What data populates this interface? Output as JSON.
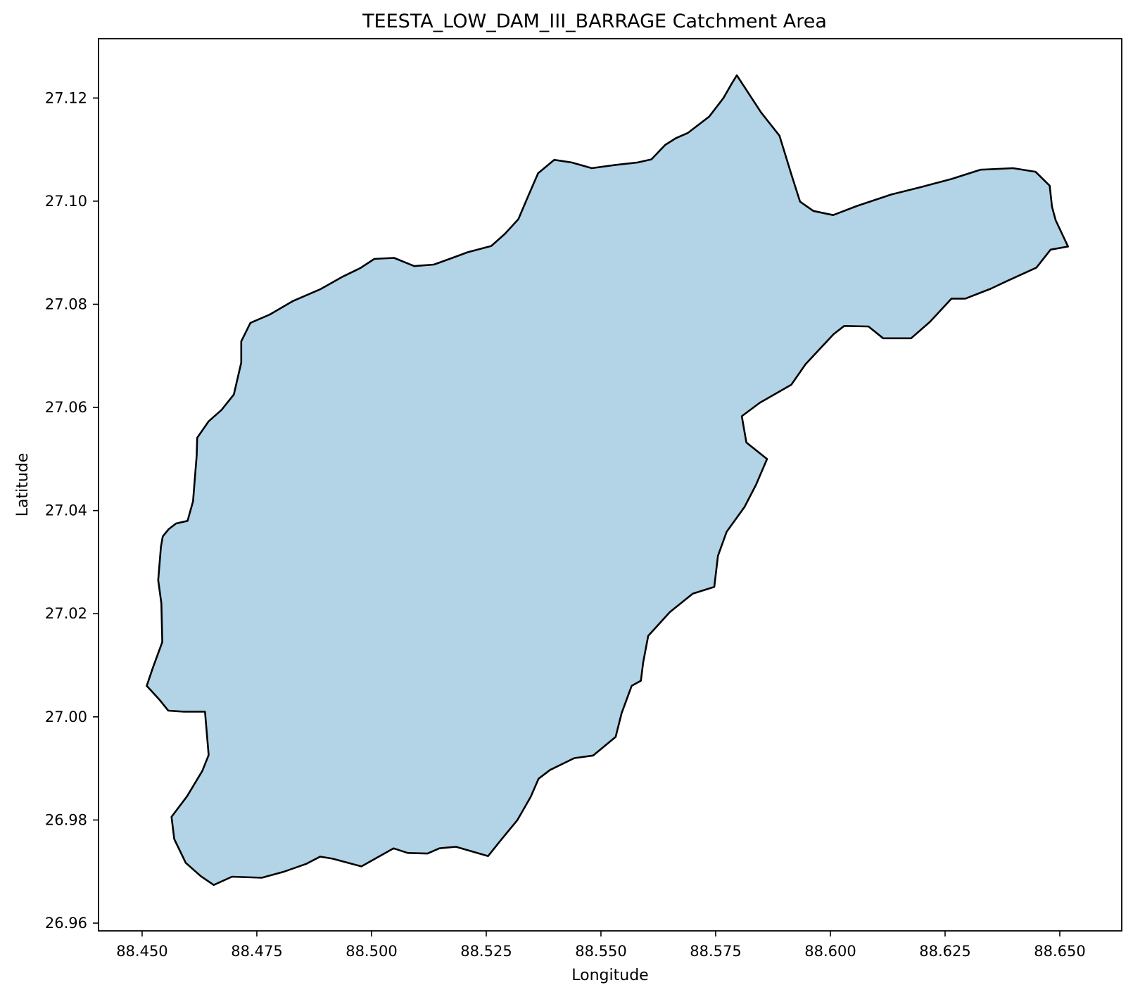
{
  "chart_data": {
    "type": "map",
    "title": "TEESTA_LOW_DAM_III_BARRAGE Catchment Area",
    "xlabel": "Longitude",
    "ylabel": "Latitude",
    "xlim": [
      88.4405,
      88.6635
    ],
    "ylim": [
      26.9585,
      27.1315
    ],
    "xticks": [
      88.45,
      88.475,
      88.5,
      88.525,
      88.55,
      88.575,
      88.6,
      88.625,
      88.65
    ],
    "xtick_labels": [
      "88.450",
      "88.475",
      "88.500",
      "88.525",
      "88.550",
      "88.575",
      "88.600",
      "88.625",
      "88.650"
    ],
    "yticks": [
      26.96,
      26.98,
      27.0,
      27.02,
      27.04,
      27.06,
      27.08,
      27.1,
      27.12
    ],
    "ytick_labels": [
      "26.96",
      "26.98",
      "27.00",
      "27.02",
      "27.04",
      "27.06",
      "27.08",
      "27.10",
      "27.12"
    ],
    "grid": false,
    "legend": false,
    "fill_color": "#b3d4e6",
    "edge_color": "#000000",
    "polygon": [
      [
        88.5796,
        27.1244
      ],
      [
        88.5849,
        27.1172
      ],
      [
        88.5889,
        27.1127
      ],
      [
        88.5915,
        27.1052
      ],
      [
        88.5934,
        27.0999
      ],
      [
        88.5963,
        27.0981
      ],
      [
        88.6006,
        27.0973
      ],
      [
        88.6059,
        27.0991
      ],
      [
        88.6133,
        27.1013
      ],
      [
        88.6196,
        27.1027
      ],
      [
        88.6264,
        27.1043
      ],
      [
        88.6327,
        27.1061
      ],
      [
        88.6398,
        27.1064
      ],
      [
        88.6447,
        27.1057
      ],
      [
        88.6478,
        27.103
      ],
      [
        88.6483,
        27.0989
      ],
      [
        88.6491,
        27.0963
      ],
      [
        88.6518,
        27.0912
      ],
      [
        88.648,
        27.0906
      ],
      [
        88.6449,
        27.0871
      ],
      [
        88.6387,
        27.0846
      ],
      [
        88.6349,
        27.083
      ],
      [
        88.6294,
        27.0811
      ],
      [
        88.6264,
        27.0811
      ],
      [
        88.6217,
        27.0766
      ],
      [
        88.6176,
        27.0734
      ],
      [
        88.6115,
        27.0734
      ],
      [
        88.6083,
        27.0757
      ],
      [
        88.603,
        27.0758
      ],
      [
        88.6007,
        27.0742
      ],
      [
        88.5946,
        27.0684
      ],
      [
        88.5915,
        27.0644
      ],
      [
        88.5846,
        27.0609
      ],
      [
        88.5807,
        27.0583
      ],
      [
        88.5817,
        27.0532
      ],
      [
        88.5862,
        27.05
      ],
      [
        88.5838,
        27.045
      ],
      [
        88.5813,
        27.0407
      ],
      [
        88.5774,
        27.0359
      ],
      [
        88.5755,
        27.0312
      ],
      [
        88.5747,
        27.0252
      ],
      [
        88.57,
        27.0239
      ],
      [
        88.565,
        27.0203
      ],
      [
        88.5603,
        27.0157
      ],
      [
        88.5592,
        27.0105
      ],
      [
        88.5587,
        27.007
      ],
      [
        88.5567,
        27.006
      ],
      [
        88.5545,
        27.0007
      ],
      [
        88.5532,
        26.9961
      ],
      [
        88.5483,
        26.9925
      ],
      [
        88.5442,
        26.992
      ],
      [
        88.5389,
        26.9897
      ],
      [
        88.5364,
        26.988
      ],
      [
        88.5347,
        26.9845
      ],
      [
        88.5318,
        26.98
      ],
      [
        88.5281,
        26.976
      ],
      [
        88.5254,
        26.973
      ],
      [
        88.5184,
        26.9748
      ],
      [
        88.5148,
        26.9745
      ],
      [
        88.5122,
        26.9735
      ],
      [
        88.5079,
        26.9736
      ],
      [
        88.5048,
        26.9745
      ],
      [
        88.4978,
        26.971
      ],
      [
        88.4915,
        26.9725
      ],
      [
        88.4888,
        26.9729
      ],
      [
        88.4858,
        26.9715
      ],
      [
        88.481,
        26.97
      ],
      [
        88.4761,
        26.9688
      ],
      [
        88.4696,
        26.969
      ],
      [
        88.4656,
        26.9674
      ],
      [
        88.4628,
        26.9691
      ],
      [
        88.4595,
        26.9717
      ],
      [
        88.457,
        26.9763
      ],
      [
        88.4564,
        26.9806
      ],
      [
        88.4598,
        26.9846
      ],
      [
        88.4631,
        26.9895
      ],
      [
        88.4645,
        26.9926
      ],
      [
        88.4637,
        27.001
      ],
      [
        88.4591,
        27.001
      ],
      [
        88.4557,
        27.0012
      ],
      [
        88.4538,
        27.0033
      ],
      [
        88.451,
        27.006
      ],
      [
        88.4523,
        27.0094
      ],
      [
        88.4544,
        27.0145
      ],
      [
        88.4542,
        27.022
      ],
      [
        88.4535,
        27.0265
      ],
      [
        88.4541,
        27.033
      ],
      [
        88.4545,
        27.035
      ],
      [
        88.4558,
        27.0364
      ],
      [
        88.4574,
        27.0375
      ],
      [
        88.4599,
        27.038
      ],
      [
        88.4611,
        27.0418
      ],
      [
        88.4619,
        27.0507
      ],
      [
        88.462,
        27.0541
      ],
      [
        88.4645,
        27.0573
      ],
      [
        88.4673,
        27.0595
      ],
      [
        88.47,
        27.0625
      ],
      [
        88.4716,
        27.0687
      ],
      [
        88.4716,
        27.0728
      ],
      [
        88.4736,
        27.0764
      ],
      [
        88.4778,
        27.078
      ],
      [
        88.4828,
        27.0806
      ],
      [
        88.4888,
        27.0829
      ],
      [
        88.4938,
        27.0854
      ],
      [
        88.4975,
        27.087
      ],
      [
        88.5006,
        27.0888
      ],
      [
        88.5049,
        27.089
      ],
      [
        88.5093,
        27.0874
      ],
      [
        88.5136,
        27.0877
      ],
      [
        88.517,
        27.0888
      ],
      [
        88.521,
        27.0901
      ],
      [
        88.5261,
        27.0913
      ],
      [
        88.5291,
        27.0937
      ],
      [
        88.532,
        27.0965
      ],
      [
        88.5341,
        27.1009
      ],
      [
        88.5363,
        27.1054
      ],
      [
        88.5398,
        27.108
      ],
      [
        88.5436,
        27.1075
      ],
      [
        88.548,
        27.1064
      ],
      [
        88.553,
        27.107
      ],
      [
        88.558,
        27.1075
      ],
      [
        88.561,
        27.1081
      ],
      [
        88.564,
        27.1109
      ],
      [
        88.5663,
        27.1122
      ],
      [
        88.5689,
        27.1132
      ],
      [
        88.5736,
        27.1164
      ],
      [
        88.5767,
        27.12
      ],
      [
        88.5785,
        27.1228
      ]
    ]
  }
}
